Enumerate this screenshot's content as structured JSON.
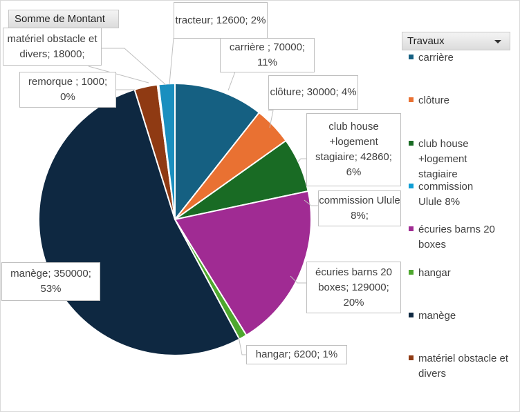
{
  "field_button": {
    "label": "Somme de Montant"
  },
  "legend": {
    "title": "Travaux"
  },
  "chart_data": {
    "type": "pie",
    "title": "",
    "value_field": "Somme de Montant",
    "category_field": "Travaux",
    "slices": [
      {
        "name": "carrière",
        "value": 70000,
        "percent": 11,
        "color": "#156082",
        "legend_label": "carrière",
        "label": "carrière ; 70000; 11%"
      },
      {
        "name": "clôture",
        "value": 30000,
        "percent": 4,
        "color": "#e97132",
        "legend_label": "clôture",
        "label": "clôture; 30000; 4%"
      },
      {
        "name": "club house +logement stagiaire",
        "value": 42860,
        "percent": 6,
        "color": "#196b24",
        "legend_label": "club house +logement stagiaire",
        "label": "club house +logement stagiaire; 42860; 6%"
      },
      {
        "name": "commission Ulule 8%",
        "value": 0,
        "percent": 0,
        "color": "#0f9ed5",
        "legend_label": "commission Ulule 8%",
        "label": "commission Ulule 8%;"
      },
      {
        "name": "écuries barns 20 boxes",
        "value": 129000,
        "percent": 20,
        "color": "#a02b93",
        "legend_label": "écuries barns 20 boxes",
        "label": "écuries barns 20 boxes; 129000; 20%"
      },
      {
        "name": "hangar",
        "value": 6200,
        "percent": 1,
        "color": "#4ea72e",
        "legend_label": "hangar",
        "label": "hangar; 6200; 1%"
      },
      {
        "name": "manège",
        "value": 350000,
        "percent": 53,
        "color": "#0e2841",
        "legend_label": "manège",
        "label": "manège; 350000; 53%"
      },
      {
        "name": "matériel obstacle et divers",
        "value": 18000,
        "percent": 3,
        "color": "#8f3a13",
        "legend_label": "matériel obstacle et divers",
        "label": "matériel obstacle et divers; 18000;"
      },
      {
        "name": "remorque",
        "value": 1000,
        "percent": 0,
        "color": "#3d7a99",
        "legend_label": "",
        "label": "remorque ; 1000; 0%"
      },
      {
        "name": "tracteur",
        "value": 12600,
        "percent": 2,
        "color": "#1a8fbf",
        "legend_label": "",
        "label": "tracteur; 12600; 2%"
      }
    ]
  }
}
